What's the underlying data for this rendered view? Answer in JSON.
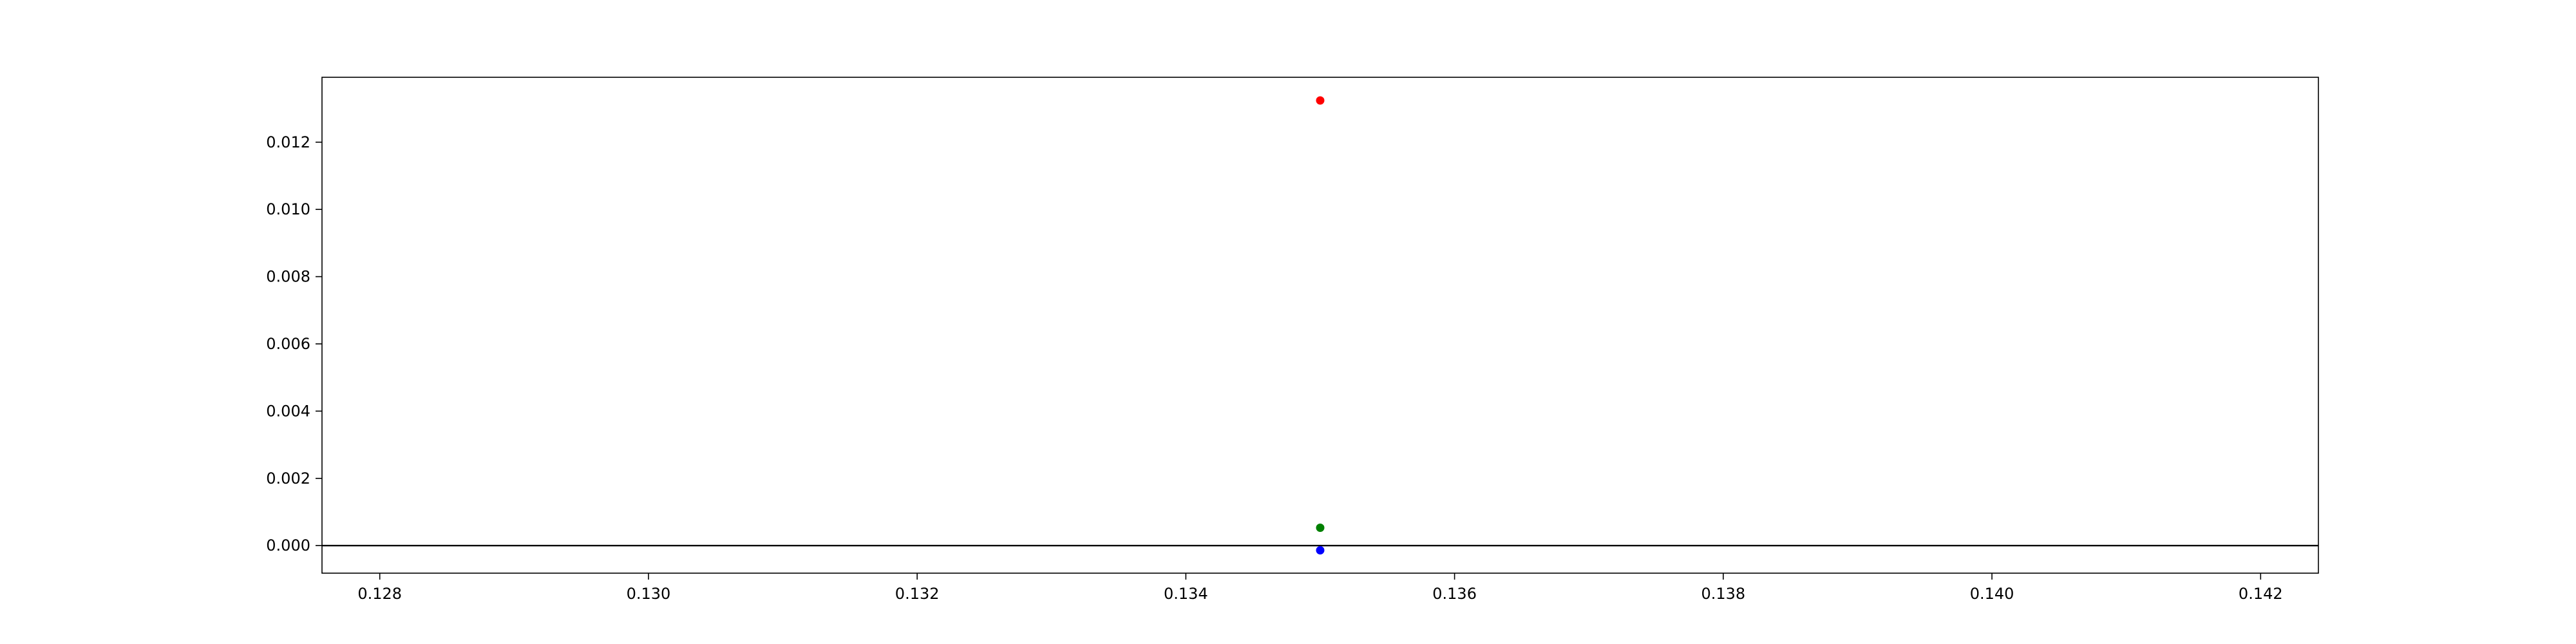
{
  "chart_data": {
    "type": "scatter",
    "title": "",
    "xlabel": "",
    "ylabel": "",
    "xlim": [
      0.12757,
      0.14243
    ],
    "ylim": [
      -0.00082,
      0.01393
    ],
    "x_ticks": [
      0.128,
      0.13,
      0.132,
      0.134,
      0.136,
      0.138,
      0.14,
      0.142
    ],
    "x_tick_labels": [
      "0.128",
      "0.130",
      "0.132",
      "0.134",
      "0.136",
      "0.138",
      "0.140",
      "0.142"
    ],
    "y_ticks": [
      0.0,
      0.002,
      0.004,
      0.006,
      0.008,
      0.01,
      0.012
    ],
    "y_tick_labels": [
      "0.000",
      "0.002",
      "0.004",
      "0.006",
      "0.008",
      "0.010",
      "0.012"
    ],
    "grid": false,
    "legend": false,
    "reference_lines": [
      {
        "orientation": "horizontal",
        "y": 0.0,
        "color": "#000000"
      }
    ],
    "series": [
      {
        "color": "#ff0000",
        "points": [
          {
            "x": 0.135,
            "y": 0.01324
          }
        ]
      },
      {
        "color": "#008000",
        "points": [
          {
            "x": 0.135,
            "y": 0.00053
          }
        ]
      },
      {
        "color": "#0000ff",
        "points": [
          {
            "x": 0.135,
            "y": -0.00014
          }
        ]
      }
    ]
  }
}
